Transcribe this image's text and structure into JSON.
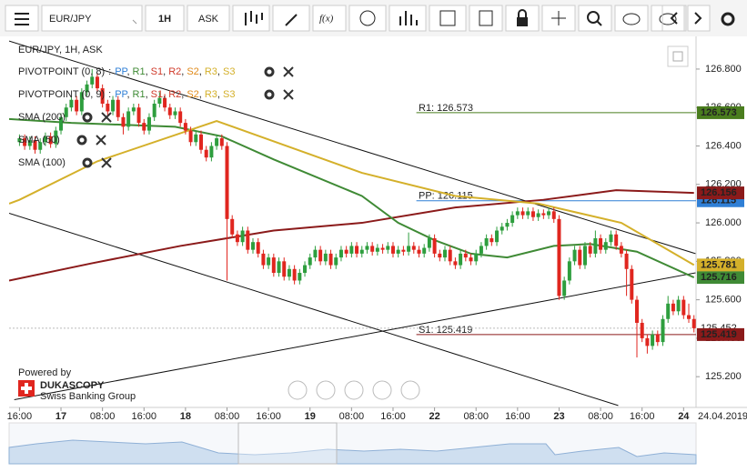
{
  "toolbar": {
    "symbol": "EUR/JPY",
    "interval": "1H",
    "price_side": "ASK",
    "function_icon": "f(x)"
  },
  "chart_data": {
    "type": "candlestick",
    "title": "EUR/JPY, 1H, ASK",
    "up_color": "#2e9e3e",
    "down_color": "#e0261f",
    "xlim": [
      -2,
      130.4
    ],
    "xticks": [
      {
        "value": 0,
        "label": "16:00"
      },
      {
        "value": 8,
        "label": "17"
      },
      {
        "value": 16,
        "label": "08:00"
      },
      {
        "value": 24,
        "label": "16:00"
      },
      {
        "value": 32,
        "label": "18"
      },
      {
        "value": 40,
        "label": "08:00"
      },
      {
        "value": 48,
        "label": "16:00"
      },
      {
        "value": 56,
        "label": "19"
      },
      {
        "value": 64,
        "label": "08:00"
      },
      {
        "value": 72,
        "label": "16:00"
      },
      {
        "value": 80,
        "label": "22"
      },
      {
        "value": 88,
        "label": "08:00"
      },
      {
        "value": 96,
        "label": "16:00"
      },
      {
        "value": 104,
        "label": "23"
      },
      {
        "value": 112,
        "label": "08:00"
      },
      {
        "value": 120,
        "label": "16:00"
      },
      {
        "value": 128,
        "label": "24"
      }
    ],
    "date_label": "24.04.2019",
    "ylim": [
      125.04,
      126.97
    ],
    "yticks": [
      {
        "value": 125.2,
        "label": "125.200"
      },
      {
        "value": 125.4,
        "label": "125.400"
      },
      {
        "value": 125.6,
        "label": "125.600"
      },
      {
        "value": 125.8,
        "label": "125.800"
      },
      {
        "value": 126.0,
        "label": "126.000"
      },
      {
        "value": 126.2,
        "label": "126.200"
      },
      {
        "value": 126.4,
        "label": "126.400"
      },
      {
        "value": 126.6,
        "label": "126.600"
      },
      {
        "value": 126.8,
        "label": "126.800"
      }
    ],
    "candles": [
      [
        126.42,
        126.46,
        126.4,
        126.44
      ],
      [
        126.44,
        126.46,
        126.38,
        126.4
      ],
      [
        126.4,
        126.45,
        126.38,
        126.43
      ],
      [
        126.43,
        126.45,
        126.36,
        126.38
      ],
      [
        126.38,
        126.44,
        126.36,
        126.42
      ],
      [
        126.42,
        126.47,
        126.4,
        126.45
      ],
      [
        126.45,
        126.47,
        126.39,
        126.41
      ],
      [
        126.41,
        126.5,
        126.39,
        126.48
      ],
      [
        126.48,
        126.57,
        126.46,
        126.55
      ],
      [
        126.55,
        126.62,
        126.53,
        126.6
      ],
      [
        126.6,
        126.66,
        126.58,
        126.64
      ],
      [
        126.64,
        126.66,
        126.56,
        126.58
      ],
      [
        126.58,
        126.7,
        126.56,
        126.68
      ],
      [
        126.68,
        126.74,
        126.66,
        126.72
      ],
      [
        126.72,
        126.8,
        126.7,
        126.76
      ],
      [
        126.76,
        126.78,
        126.68,
        126.7
      ],
      [
        126.7,
        126.72,
        126.6,
        126.62
      ],
      [
        126.62,
        126.64,
        126.56,
        126.58
      ],
      [
        126.58,
        126.66,
        126.56,
        126.64
      ],
      [
        126.64,
        126.66,
        126.53,
        126.55
      ],
      [
        126.55,
        126.57,
        126.46,
        126.5
      ],
      [
        126.5,
        126.6,
        126.48,
        126.58
      ],
      [
        126.58,
        126.62,
        126.56,
        126.6
      ],
      [
        126.6,
        126.62,
        126.5,
        126.52
      ],
      [
        126.52,
        126.54,
        126.46,
        126.48
      ],
      [
        126.48,
        126.57,
        126.46,
        126.55
      ],
      [
        126.55,
        126.64,
        126.53,
        126.62
      ],
      [
        126.62,
        126.68,
        126.6,
        126.65
      ],
      [
        126.65,
        126.67,
        126.58,
        126.6
      ],
      [
        126.6,
        126.62,
        126.54,
        126.56
      ],
      [
        126.56,
        126.6,
        126.54,
        126.58
      ],
      [
        126.58,
        126.6,
        126.5,
        126.52
      ],
      [
        126.52,
        126.54,
        126.46,
        126.48
      ],
      [
        126.48,
        126.5,
        126.4,
        126.42
      ],
      [
        126.42,
        126.48,
        126.4,
        126.46
      ],
      [
        126.46,
        126.48,
        126.36,
        126.38
      ],
      [
        126.38,
        126.4,
        126.32,
        126.34
      ],
      [
        126.34,
        126.42,
        126.32,
        126.4
      ],
      [
        126.4,
        126.46,
        126.38,
        126.44
      ],
      [
        126.44,
        126.46,
        126.38,
        126.4
      ],
      [
        126.4,
        126.42,
        125.7,
        126.02
      ],
      [
        126.02,
        126.04,
        125.92,
        125.94
      ],
      [
        125.94,
        125.96,
        125.88,
        125.9
      ],
      [
        125.9,
        125.98,
        125.88,
        125.96
      ],
      [
        125.96,
        125.98,
        125.84,
        125.86
      ],
      [
        125.86,
        125.92,
        125.84,
        125.9
      ],
      [
        125.9,
        125.92,
        125.82,
        125.84
      ],
      [
        125.84,
        125.86,
        125.76,
        125.78
      ],
      [
        125.78,
        125.84,
        125.76,
        125.82
      ],
      [
        125.82,
        125.84,
        125.72,
        125.74
      ],
      [
        125.74,
        125.82,
        125.72,
        125.8
      ],
      [
        125.8,
        125.82,
        125.7,
        125.72
      ],
      [
        125.72,
        125.78,
        125.7,
        125.76
      ],
      [
        125.76,
        125.78,
        125.68,
        125.7
      ],
      [
        125.7,
        125.76,
        125.68,
        125.74
      ],
      [
        125.74,
        125.8,
        125.72,
        125.78
      ],
      [
        125.78,
        125.84,
        125.76,
        125.82
      ],
      [
        125.82,
        125.88,
        125.8,
        125.86
      ],
      [
        125.86,
        125.88,
        125.78,
        125.8
      ],
      [
        125.8,
        125.86,
        125.78,
        125.84
      ],
      [
        125.84,
        125.86,
        125.76,
        125.78
      ],
      [
        125.78,
        125.84,
        125.76,
        125.82
      ],
      [
        125.82,
        125.88,
        125.8,
        125.86
      ],
      [
        125.86,
        125.88,
        125.82,
        125.84
      ],
      [
        125.84,
        125.9,
        125.82,
        125.88
      ],
      [
        125.88,
        125.9,
        125.82,
        125.84
      ],
      [
        125.84,
        125.88,
        125.82,
        125.86
      ],
      [
        125.86,
        125.9,
        125.84,
        125.88
      ],
      [
        125.88,
        125.9,
        125.83,
        125.85
      ],
      [
        125.85,
        125.89,
        125.83,
        125.87
      ],
      [
        125.87,
        125.89,
        125.84,
        125.86
      ],
      [
        125.86,
        125.9,
        125.84,
        125.88
      ],
      [
        125.88,
        125.9,
        125.82,
        125.84
      ],
      [
        125.84,
        125.88,
        125.82,
        125.86
      ],
      [
        125.86,
        125.88,
        125.83,
        125.85
      ],
      [
        125.85,
        125.95,
        125.83,
        125.88
      ],
      [
        125.88,
        125.9,
        125.84,
        125.86
      ],
      [
        125.86,
        125.88,
        125.82,
        125.84
      ],
      [
        125.84,
        125.89,
        125.82,
        125.87
      ],
      [
        125.87,
        125.94,
        125.85,
        125.92
      ],
      [
        125.92,
        125.94,
        125.82,
        125.84
      ],
      [
        125.84,
        125.86,
        125.8,
        125.82
      ],
      [
        125.82,
        125.88,
        125.8,
        125.86
      ],
      [
        125.86,
        125.88,
        125.78,
        125.8
      ],
      [
        125.8,
        125.82,
        125.76,
        125.78
      ],
      [
        125.78,
        125.86,
        125.76,
        125.84
      ],
      [
        125.84,
        125.86,
        125.8,
        125.82
      ],
      [
        125.82,
        125.84,
        125.78,
        125.8
      ],
      [
        125.8,
        125.86,
        125.78,
        125.84
      ],
      [
        125.84,
        125.9,
        125.82,
        125.88
      ],
      [
        125.88,
        125.94,
        125.86,
        125.92
      ],
      [
        125.92,
        125.94,
        125.88,
        125.9
      ],
      [
        125.9,
        125.98,
        125.88,
        125.96
      ],
      [
        125.96,
        126.0,
        125.94,
        125.98
      ],
      [
        125.98,
        126.02,
        125.96,
        126.0
      ],
      [
        126.0,
        126.06,
        125.98,
        126.04
      ],
      [
        126.04,
        126.08,
        126.02,
        126.06
      ],
      [
        126.06,
        126.08,
        126.02,
        126.04
      ],
      [
        126.04,
        126.08,
        126.02,
        126.06
      ],
      [
        126.06,
        126.08,
        126.01,
        126.03
      ],
      [
        126.03,
        126.07,
        126.01,
        126.05
      ],
      [
        126.05,
        126.07,
        126.02,
        126.04
      ],
      [
        126.04,
        126.08,
        126.02,
        126.06
      ],
      [
        126.06,
        126.08,
        126.0,
        126.02
      ],
      [
        126.02,
        126.04,
        125.6,
        125.62
      ],
      [
        125.62,
        125.72,
        125.6,
        125.7
      ],
      [
        125.7,
        125.82,
        125.68,
        125.8
      ],
      [
        125.8,
        125.88,
        125.78,
        125.86
      ],
      [
        125.86,
        125.88,
        125.76,
        125.78
      ],
      [
        125.78,
        125.9,
        125.76,
        125.88
      ],
      [
        125.88,
        125.9,
        125.82,
        125.84
      ],
      [
        125.84,
        125.96,
        125.82,
        125.92
      ],
      [
        125.92,
        125.94,
        125.84,
        125.86
      ],
      [
        125.86,
        125.92,
        125.84,
        125.9
      ],
      [
        125.9,
        125.96,
        125.88,
        125.94
      ],
      [
        125.94,
        125.96,
        125.86,
        125.88
      ],
      [
        125.88,
        125.9,
        125.82,
        125.84
      ],
      [
        125.84,
        125.86,
        125.62,
        125.76
      ],
      [
        125.76,
        125.78,
        125.58,
        125.6
      ],
      [
        125.6,
        125.62,
        125.3,
        125.48
      ],
      [
        125.48,
        125.5,
        125.38,
        125.4
      ],
      [
        125.4,
        125.42,
        125.32,
        125.36
      ],
      [
        125.36,
        125.44,
        125.34,
        125.42
      ],
      [
        125.42,
        125.44,
        125.36,
        125.38
      ],
      [
        125.38,
        125.52,
        125.36,
        125.5
      ],
      [
        125.5,
        125.62,
        125.48,
        125.58
      ],
      [
        125.58,
        125.6,
        125.52,
        125.54
      ],
      [
        125.54,
        125.62,
        125.52,
        125.6
      ],
      [
        125.6,
        125.62,
        125.5,
        125.52
      ],
      [
        125.52,
        125.58,
        125.48,
        125.5
      ],
      [
        125.5,
        125.52,
        125.43,
        125.452
      ]
    ],
    "indicators": [
      {
        "name": "SMA (200)",
        "color": "#8b1a1a",
        "x": [
          -2,
          14,
          31,
          49,
          66,
          84,
          101,
          115,
          130
        ],
        "values": [
          125.7,
          125.79,
          125.88,
          125.96,
          126.0,
          126.08,
          126.12,
          126.17,
          126.156
        ]
      },
      {
        "name": "SMA (50)",
        "color": "#3f8a35",
        "x": [
          -2,
          10,
          30,
          39,
          49,
          66,
          73,
          80,
          87,
          94,
          103,
          110,
          119,
          130
        ],
        "values": [
          126.54,
          126.52,
          126.5,
          126.45,
          126.33,
          126.14,
          126.0,
          125.91,
          125.84,
          125.82,
          125.88,
          125.89,
          125.85,
          125.716
        ]
      },
      {
        "name": "SMA (100)",
        "color": "#d4b02a",
        "x": [
          -2,
          0,
          15,
          38,
          66,
          84,
          100,
          116,
          130
        ],
        "values": [
          126.1,
          126.12,
          126.32,
          126.53,
          126.26,
          126.14,
          126.1,
          126.0,
          125.781
        ]
      }
    ],
    "pivot_studies": [
      {
        "name": "PIVOTPOINT (0, 8)"
      },
      {
        "name": "PIVOTPOINT (0, 9)"
      }
    ],
    "pivot_lead": ":",
    "pivot_separator": ",",
    "pivot_level_names": [
      "PP",
      "R1",
      "S1",
      "R2",
      "S2",
      "R3",
      "S3"
    ],
    "pivot_level_colors": [
      "#2f7fd6",
      "#3f8a35",
      "#d03a2a",
      "#d03a2a",
      "#e08a1a",
      "#d4b02a",
      "#d4b02a"
    ],
    "pivot_levels": [
      {
        "label": "R1: 126.573",
        "value": 126.573,
        "color": "#4a7d1e"
      },
      {
        "label": "PP: 126.115",
        "value": 126.115,
        "color": "#2f7fd6"
      },
      {
        "label": "S1: 125.419",
        "value": 125.419,
        "color": "#8b1a1a"
      }
    ],
    "trend_lines": [
      {
        "x": [
          -2,
          130.3
        ],
        "values": [
          126.946,
          125.84
        ]
      },
      {
        "x": [
          -2,
          115.4
        ],
        "values": [
          126.05,
          125.05
        ]
      },
      {
        "x": [
          -1,
          130.3
        ],
        "values": [
          125.08,
          125.74
        ]
      }
    ],
    "branding": {
      "powered_by": "Powered by",
      "name": "DUKASCOPY",
      "tagline": "Swiss Banking Group"
    }
  }
}
